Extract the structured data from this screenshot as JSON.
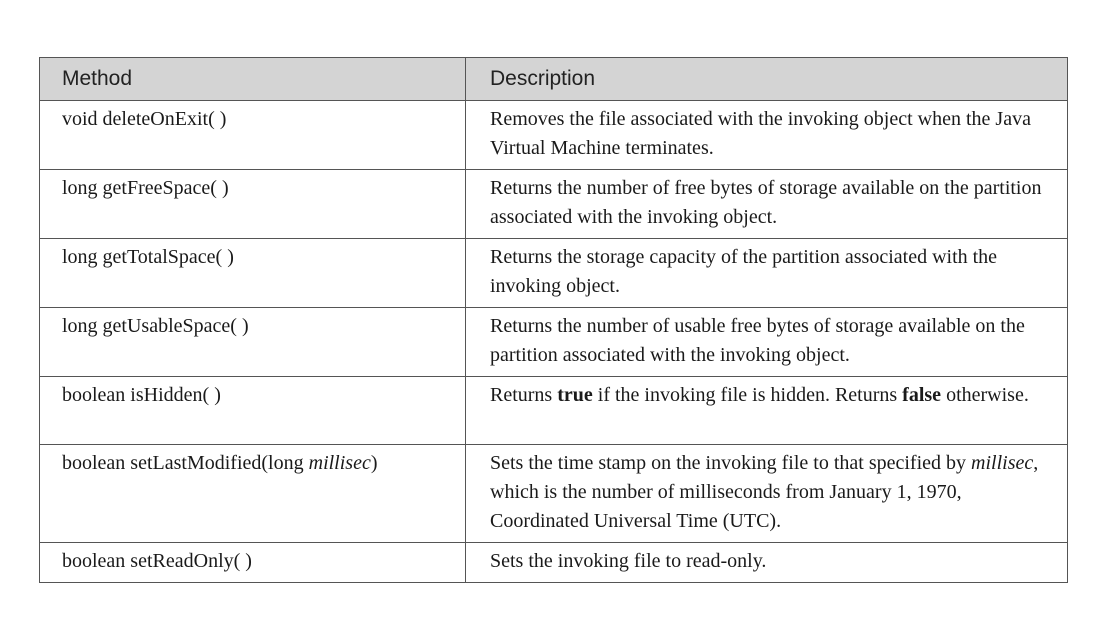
{
  "table": {
    "headers": {
      "method": "Method",
      "description": "Description"
    },
    "rows": [
      {
        "method": "void deleteOnExit( )",
        "description": "Removes the file associated with the invoking object when the Java Virtual Machine terminates."
      },
      {
        "method": "long getFreeSpace( )",
        "description": "Returns the number of free bytes of storage available on the partition associated with the invoking object."
      },
      {
        "method": "long getTotalSpace( )",
        "description": "Returns the storage capacity of the partition associated with the invoking object."
      },
      {
        "method": "long getUsableSpace( )",
        "description": "Returns the number of usable free bytes of storage available on the partition associated with the invoking object."
      },
      {
        "method": "boolean isHidden( )",
        "description_parts": {
          "p1": "Returns ",
          "b1": "true",
          "p2": " if the invoking file is hidden. Returns ",
          "b2": "false",
          "p3": " otherwise."
        }
      },
      {
        "method_parts": {
          "p1": "boolean setLastModified(long ",
          "i1": "millisec",
          "p2": ")"
        },
        "description_parts": {
          "p1": "Sets the time stamp on the invoking file to that specified by ",
          "i1": "millisec",
          "p2": ", which is the number of milliseconds from January 1, 1970, Coordinated Universal Time (UTC)."
        }
      },
      {
        "method": "boolean setReadOnly( )",
        "description": "Sets the invoking file to read-only."
      }
    ]
  }
}
